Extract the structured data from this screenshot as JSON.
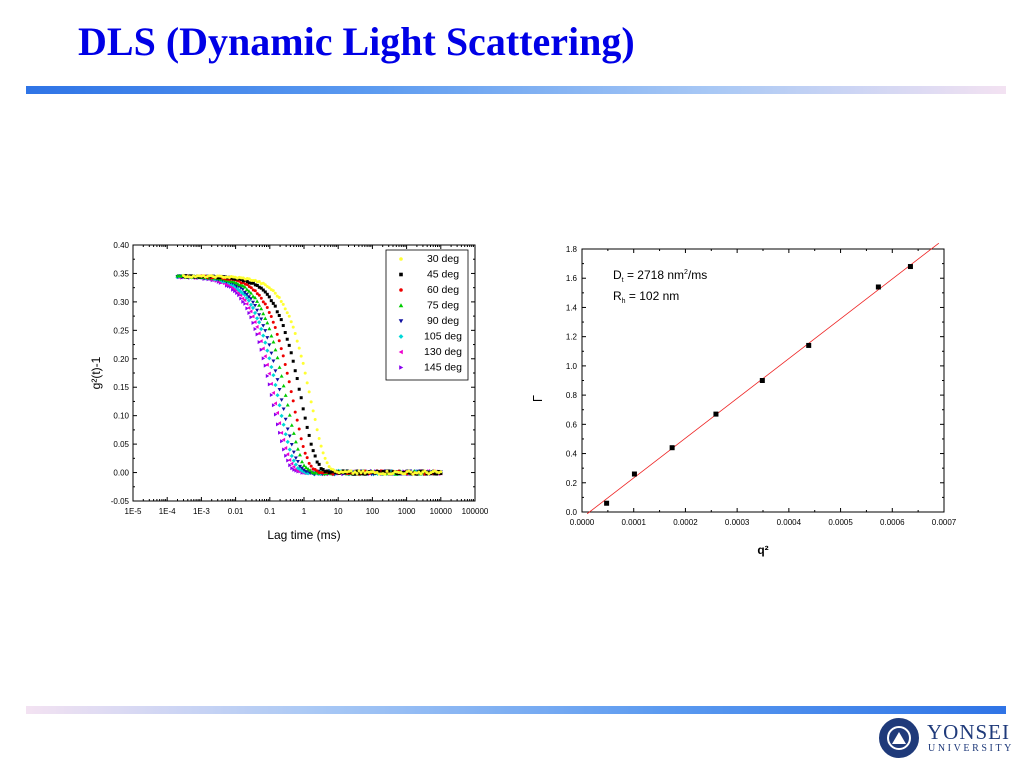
{
  "slide": {
    "title": "DLS (Dynamic Light Scattering)",
    "logo": {
      "name": "YONSEI",
      "subtitle": "UNIVERSITY"
    }
  },
  "chart_data": [
    {
      "type": "scatter",
      "ylabel": "g²(t)-1",
      "xlabel": "Lag time (ms)",
      "x_scale": "log",
      "xlim": [
        1e-05,
        100000
      ],
      "ylim": [
        -0.05,
        0.4
      ],
      "x_ticks": [
        "1E-5",
        "1E-4",
        "1E-3",
        "0.01",
        "0.1",
        "1",
        "10",
        "100",
        "1000",
        "10000",
        "100000"
      ],
      "y_ticks": [
        "-0.05",
        "0.00",
        "0.05",
        "0.10",
        "0.15",
        "0.20",
        "0.25",
        "0.30",
        "0.35",
        "0.40"
      ],
      "legend_position": "top-right",
      "series": [
        {
          "name": "30 deg",
          "color": "#ffff33",
          "marker": "circle",
          "decay_time_ms": 3.2,
          "data_range_ms": [
            0.0003,
            10000
          ]
        },
        {
          "name": "45 deg",
          "color": "#000000",
          "marker": "square",
          "decay_time_ms": 1.7,
          "data_range_ms": [
            0.0003,
            10000
          ]
        },
        {
          "name": "60 deg",
          "color": "#ee0000",
          "marker": "circle",
          "decay_time_ms": 0.95,
          "data_range_ms": [
            0.0003,
            10000
          ]
        },
        {
          "name": "75 deg",
          "color": "#00cc00",
          "marker": "triangle-up",
          "decay_time_ms": 0.62,
          "data_range_ms": [
            0.0002,
            10000
          ]
        },
        {
          "name": "90 deg",
          "color": "#1010a0",
          "marker": "triangle-down",
          "decay_time_ms": 0.45,
          "data_range_ms": [
            0.0002,
            10000
          ]
        },
        {
          "name": "105 deg",
          "color": "#00d8d8",
          "marker": "diamond",
          "decay_time_ms": 0.36,
          "data_range_ms": [
            0.0002,
            10000
          ]
        },
        {
          "name": "130 deg",
          "color": "#ee00cc",
          "marker": "triangle-left",
          "decay_time_ms": 0.28,
          "data_range_ms": [
            0.0002,
            10000
          ]
        },
        {
          "name": "145 deg",
          "color": "#8800ee",
          "marker": "triangle-right",
          "decay_time_ms": 0.24,
          "data_range_ms": [
            0.0002,
            10000
          ]
        }
      ],
      "baseline_amplitude": 0.345
    },
    {
      "type": "scatter",
      "ylabel": "Γ",
      "xlabel": "q²",
      "xlim": [
        0.0,
        0.0007
      ],
      "ylim": [
        0.0,
        1.8
      ],
      "x_ticks": [
        "0.0000",
        "0.0001",
        "0.0002",
        "0.0003",
        "0.0004",
        "0.0005",
        "0.0006",
        "0.0007"
      ],
      "y_ticks": [
        "0.0",
        "0.2",
        "0.4",
        "0.6",
        "0.8",
        "1.0",
        "1.2",
        "1.4",
        "1.6",
        "1.8"
      ],
      "annotations": [
        {
          "main": "D",
          "sub": "t",
          "rest1": " = 2718 nm",
          "sup": "2",
          "rest2": "/ms"
        },
        {
          "main": "R",
          "sub": "h",
          "rest1": " = 102 nm",
          "sup": "",
          "rest2": ""
        }
      ],
      "points": {
        "x": [
          4.76e-05,
          0.0001014,
          0.0001743,
          0.000259,
          0.0003487,
          0.0004384,
          0.0005731,
          0.0006351
        ],
        "y": [
          0.06,
          0.26,
          0.44,
          0.67,
          0.9,
          1.14,
          1.54,
          1.68
        ]
      },
      "marker_color": "#000000",
      "fit_line": {
        "x": [
          1e-05,
          0.00069
        ],
        "y": [
          -0.012,
          1.84
        ],
        "color": "#ee2222"
      }
    }
  ]
}
